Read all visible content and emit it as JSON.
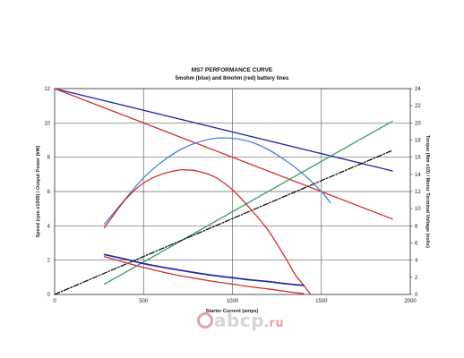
{
  "chart_data": {
    "type": "line",
    "title": "MS7 PERFORMANCE CURVE",
    "subtitle": "5mohm (blue) and 8mohm (red) battery lines",
    "xlabel": "Starter Current (amps)",
    "ylabel_left": "Speed (rpm x1000) / Output Power (kW)",
    "ylabel_right": "Torque (Nm x10) / Motor Terminal Voltage (volts)",
    "xlim": [
      0,
      2000
    ],
    "ylim_left": [
      0,
      12
    ],
    "ylim_right": [
      0,
      24
    ],
    "x_ticks": [
      "0",
      "500",
      "1000",
      "1500",
      "2000"
    ],
    "y_ticks_left": [
      "0",
      "2",
      "4",
      "6",
      "8",
      "10",
      "12"
    ],
    "y_ticks_right": [
      "0",
      "2",
      "4",
      "6",
      "8",
      "10",
      "12",
      "14",
      "16",
      "18",
      "20",
      "22",
      "24"
    ],
    "grid": true,
    "series": [
      {
        "name": "",
        "axis": "right",
        "color": "#2323a8",
        "style": "solid",
        "x": [
          0,
          1900
        ],
        "y": [
          24,
          14.4
        ]
      },
      {
        "name": "",
        "axis": "right",
        "color": "#d42a2a",
        "style": "solid",
        "x": [
          0,
          1900
        ],
        "y": [
          24,
          8.8
        ]
      },
      {
        "name": "",
        "axis": "right",
        "color": "#3a9a6a",
        "style": "solid",
        "x": [
          280,
          1900
        ],
        "y": [
          1.2,
          20.2
        ]
      },
      {
        "name": "",
        "axis": "right",
        "color": "#111111",
        "style": "dashdot",
        "x": [
          0,
          1900
        ],
        "y": [
          0,
          16.8
        ]
      },
      {
        "name": "",
        "axis": "left",
        "color": "#4a82d6",
        "style": "solid",
        "x": [
          280,
          400,
          500,
          600,
          700,
          800,
          900,
          1000,
          1100,
          1200,
          1300,
          1400,
          1500,
          1550
        ],
        "y": [
          4.1,
          5.6,
          6.8,
          7.7,
          8.4,
          8.85,
          9.1,
          9.1,
          8.9,
          8.45,
          7.8,
          7.0,
          6.0,
          5.35
        ]
      },
      {
        "name": "",
        "axis": "left",
        "color": "#d42a2a",
        "style": "solid",
        "x": [
          280,
          400,
          500,
          600,
          700,
          750,
          800,
          900,
          1000,
          1100,
          1200,
          1300,
          1350,
          1400,
          1440
        ],
        "y": [
          3.9,
          5.55,
          6.5,
          7.0,
          7.25,
          7.25,
          7.2,
          6.85,
          6.1,
          5.0,
          3.75,
          2.1,
          1.2,
          0.55,
          0.0
        ]
      },
      {
        "name": "",
        "axis": "right",
        "color": "#2323a8",
        "style": "dotted",
        "x": [
          280,
          400,
          500,
          600,
          700,
          800,
          900,
          1000,
          1100,
          1200,
          1300,
          1400
        ],
        "y": [
          4.65,
          4.1,
          3.6,
          3.2,
          2.85,
          2.5,
          2.2,
          1.95,
          1.7,
          1.5,
          1.25,
          1.05
        ]
      },
      {
        "name": "",
        "axis": "right",
        "color": "#d42a2a",
        "style": "solid",
        "x": [
          280,
          400,
          500,
          600,
          700,
          800,
          900,
          1000,
          1100,
          1200,
          1300,
          1400
        ],
        "y": [
          4.4,
          3.7,
          3.15,
          2.65,
          2.2,
          1.85,
          1.5,
          1.2,
          0.9,
          0.65,
          0.35,
          0.1
        ]
      }
    ]
  },
  "watermark": {
    "text": "abcp",
    "suffix": ".ru"
  }
}
